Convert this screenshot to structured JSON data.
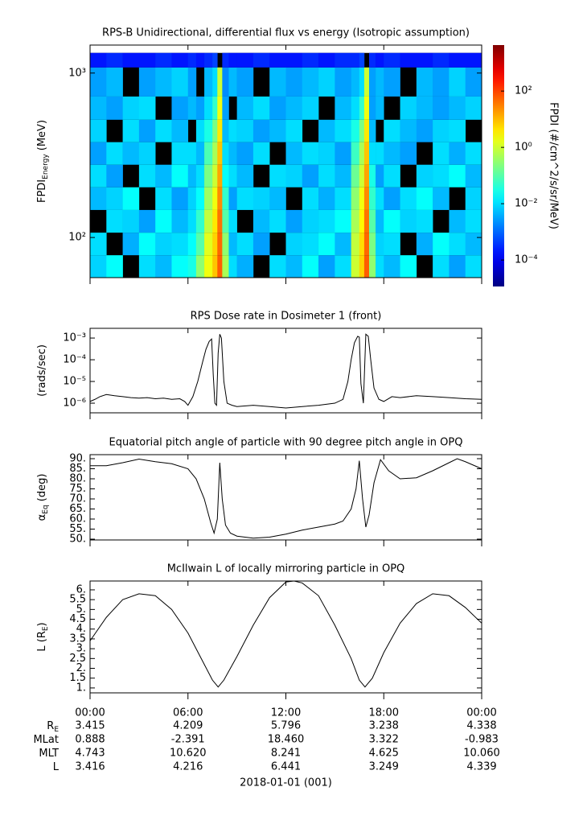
{
  "chart_data": [
    {
      "type": "heatmap",
      "title": "RPS-B  Unidirectional, differential flux vs energy (Isotropic assumption)",
      "ylabel": {
        "main": "FPDI",
        "sub": "Energy",
        "tail": " (MeV)"
      },
      "ylog": true,
      "ylim": [
        57,
        1480
      ],
      "yticks": [
        {
          "value": 100,
          "label": "10²"
        },
        {
          "value": 1000,
          "label": "10³"
        }
      ],
      "xlim": [
        0,
        24
      ],
      "xticks": [
        0,
        6,
        12,
        18,
        24
      ],
      "xbins": [
        0,
        1,
        2,
        3,
        4,
        5,
        6,
        6.5,
        7,
        7.5,
        7.8,
        8.1,
        8.5,
        9,
        10,
        11,
        12,
        13,
        14,
        15,
        16,
        16.5,
        16.8,
        17.1,
        17.5,
        18,
        19,
        20,
        21,
        22,
        23,
        24
      ],
      "ybins": [
        57,
        78,
        107,
        147,
        202,
        277,
        380,
        520,
        720,
        1082,
        1326
      ],
      "z": [
        [
          0.008,
          0.02,
          null,
          0.01,
          0.005,
          0.02,
          0.03,
          0.3,
          2,
          8,
          60,
          0.5,
          0.01,
          0.004,
          null,
          0.01,
          0.005,
          0.02,
          0.003,
          0.01,
          1,
          6,
          60,
          0.3,
          0.01,
          0.005,
          0.02,
          null,
          0.01,
          0.003,
          0.01
        ],
        [
          0.01,
          null,
          0.004,
          0.02,
          0.008,
          0.01,
          0.02,
          0.1,
          1.5,
          6,
          50,
          0.3,
          0.005,
          0.01,
          0.003,
          null,
          0.008,
          0.01,
          0.02,
          0.005,
          0.8,
          5,
          50,
          0.2,
          0.008,
          0.01,
          null,
          0.004,
          0.02,
          0.01,
          0.005
        ],
        [
          null,
          0.01,
          0.008,
          0.003,
          0.02,
          0.005,
          0.01,
          0.05,
          0.8,
          4,
          40,
          0.1,
          0.01,
          null,
          0.005,
          0.01,
          0.003,
          0.008,
          0.01,
          0.02,
          0.5,
          3,
          40,
          0.1,
          0.005,
          0.02,
          0.008,
          0.01,
          null,
          0.005,
          0.01
        ],
        [
          0.005,
          0.008,
          0.02,
          null,
          0.01,
          0.003,
          0.008,
          0.02,
          0.4,
          2,
          25,
          0.05,
          0.003,
          0.01,
          0.008,
          0.005,
          null,
          0.01,
          0.004,
          0.01,
          0.3,
          2,
          25,
          0.05,
          0.01,
          0.003,
          0.01,
          0.02,
          0.005,
          null,
          0.008
        ],
        [
          0.01,
          0.003,
          null,
          0.01,
          0.005,
          0.02,
          0.005,
          0.01,
          0.2,
          1,
          15,
          0.02,
          0.01,
          0.005,
          null,
          0.01,
          0.008,
          0.003,
          0.01,
          0.005,
          0.15,
          1,
          15,
          0.03,
          0.003,
          0.01,
          null,
          0.008,
          0.01,
          0.02,
          0.005
        ],
        [
          0.003,
          0.01,
          0.005,
          0.008,
          null,
          0.01,
          0.01,
          0.005,
          0.08,
          0.5,
          8,
          0.01,
          0.005,
          0.003,
          0.01,
          null,
          0.005,
          0.01,
          0.008,
          0.003,
          0.06,
          0.5,
          8,
          0.01,
          0.01,
          0.005,
          0.003,
          null,
          0.01,
          0.004,
          0.01
        ],
        [
          0.008,
          null,
          0.01,
          0.003,
          0.01,
          0.005,
          null,
          0.01,
          0.03,
          0.2,
          4,
          0.005,
          0.01,
          0.008,
          0.003,
          0.005,
          0.01,
          null,
          0.005,
          0.01,
          0.03,
          0.2,
          4,
          0.005,
          null,
          0.01,
          0.005,
          0.003,
          0.008,
          0.01,
          null
        ],
        [
          0.005,
          0.003,
          0.008,
          0.01,
          null,
          0.003,
          0.005,
          0.003,
          0.01,
          0.05,
          2,
          0.003,
          null,
          0.005,
          0.01,
          0.003,
          0.005,
          0.008,
          null,
          0.005,
          0.01,
          0.05,
          2,
          0.003,
          0.005,
          null,
          0.008,
          0.005,
          0.003,
          0.005,
          0.008
        ],
        [
          0.003,
          0.005,
          null,
          0.003,
          0.005,
          0.008,
          0.003,
          null,
          0.005,
          0.01,
          1,
          0.002,
          0.005,
          0.003,
          null,
          0.005,
          0.003,
          0.005,
          0.008,
          0.003,
          0.005,
          0.01,
          1,
          0.003,
          0.005,
          0.003,
          null,
          0.005,
          0.003,
          0.008,
          0.003
        ],
        [
          0.0002,
          0.0003,
          0.0002,
          0.0002,
          0.0003,
          0.0002,
          0.0003,
          0.0002,
          0.0003,
          0.0005,
          null,
          0.0003,
          0.0002,
          0.0002,
          0.0003,
          0.0002,
          0.0002,
          0.0003,
          0.0002,
          0.0003,
          0.0003,
          0.0005,
          null,
          0.0003,
          0.0002,
          0.0003,
          0.0002,
          0.0002,
          0.0003,
          0.0002,
          0.0002
        ]
      ],
      "colorbar": {
        "label": "FPDI (#/cm^2/s/sr/MeV)",
        "zlim": [
          1.15e-05,
          4300
        ],
        "zticks": [
          {
            "value": 0.0001,
            "label": "10⁻⁴"
          },
          {
            "value": 0.01,
            "label": "10⁻²"
          },
          {
            "value": 1,
            "label": "10⁰"
          },
          {
            "value": 100,
            "label": "10²"
          }
        ]
      }
    },
    {
      "type": "line",
      "title": "RPS  Dose rate in Dosimeter 1 (front)",
      "ylabel": {
        "main": "(rads/sec)"
      },
      "ylog": true,
      "ylim": [
        3.6e-07,
        0.0028
      ],
      "yticks": [
        {
          "value": 1e-06,
          "label": "10⁻⁶"
        },
        {
          "value": 1e-05,
          "label": "10⁻⁵"
        },
        {
          "value": 0.0001,
          "label": "10⁻⁴"
        },
        {
          "value": 0.001,
          "label": "10⁻³"
        }
      ],
      "xlim": [
        0,
        24
      ],
      "xticks": [
        0,
        6,
        12,
        18,
        24
      ],
      "color": "#000000",
      "x": [
        0,
        0.3,
        0.6,
        1,
        1.5,
        2,
        2.5,
        3,
        3.5,
        4,
        4.5,
        5,
        5.5,
        5.8,
        6,
        6.3,
        6.6,
        6.9,
        7.1,
        7.3,
        7.45,
        7.55,
        7.65,
        7.75,
        7.85,
        7.95,
        8.05,
        8.2,
        8.4,
        8.7,
        9,
        10,
        11,
        12,
        13,
        14,
        15,
        15.5,
        15.8,
        16,
        16.2,
        16.4,
        16.5,
        16.6,
        16.75,
        16.9,
        17.05,
        17.2,
        17.4,
        17.7,
        18,
        18.5,
        19,
        20,
        21,
        22,
        23,
        24
      ],
      "values": [
        1.2e-06,
        1.5e-06,
        2e-06,
        2.5e-06,
        2.2e-06,
        2e-06,
        1.8e-06,
        1.7e-06,
        1.8e-06,
        1.6e-06,
        1.7e-06,
        1.5e-06,
        1.6e-06,
        1.2e-06,
        8e-07,
        2e-06,
        1e-05,
        8e-05,
        0.0003,
        0.0007,
        0.0009,
        2e-05,
        1e-06,
        8e-07,
        0.0002,
        0.0015,
        0.001,
        1e-05,
        1e-06,
        8e-07,
        7e-07,
        8e-07,
        7e-07,
        6e-07,
        7e-07,
        8e-07,
        1e-06,
        1.5e-06,
        1e-05,
        0.0001,
        0.0006,
        0.0012,
        0.0011,
        8e-06,
        1e-06,
        0.0015,
        0.0012,
        0.0001,
        5e-06,
        1.5e-06,
        1.2e-06,
        2e-06,
        1.8e-06,
        2.2e-06,
        2e-06,
        1.8e-06,
        1.6e-06,
        1.5e-06
      ]
    },
    {
      "type": "line",
      "title": "Equatorial pitch angle of particle with 90 degree pitch angle in OPQ",
      "ylabel": {
        "main": "α",
        "sub": "Eq",
        "tail": " (deg)"
      },
      "ylim": [
        49.6,
        92
      ],
      "yticks": [
        {
          "value": 50,
          "label": "50."
        },
        {
          "value": 55,
          "label": "55."
        },
        {
          "value": 60,
          "label": "60."
        },
        {
          "value": 65,
          "label": "65."
        },
        {
          "value": 70,
          "label": "70."
        },
        {
          "value": 75,
          "label": "75."
        },
        {
          "value": 80,
          "label": "80."
        },
        {
          "value": 85,
          "label": "85."
        },
        {
          "value": 90,
          "label": "90."
        }
      ],
      "xlim": [
        0,
        24
      ],
      "xticks": [
        0,
        6,
        12,
        18,
        24
      ],
      "color": "#000000",
      "x": [
        0,
        1,
        2,
        3,
        4,
        5,
        6,
        6.5,
        7,
        7.4,
        7.6,
        7.8,
        7.95,
        8.1,
        8.3,
        8.6,
        9,
        10,
        11,
        12,
        13,
        14,
        15,
        15.5,
        16,
        16.3,
        16.5,
        16.7,
        16.9,
        17.1,
        17.4,
        17.8,
        18.3,
        19,
        20,
        21,
        22,
        22.5,
        23,
        24
      ],
      "values": [
        86.5,
        86.5,
        88,
        89.8,
        88.5,
        87.5,
        85,
        80,
        70,
        58,
        53,
        60,
        88,
        70,
        57,
        53,
        51.5,
        50.5,
        51,
        52.5,
        54.5,
        56,
        57.5,
        59,
        65,
        75,
        89,
        70,
        56,
        62,
        78,
        89.5,
        84,
        80,
        80.5,
        84,
        88,
        90,
        88.5,
        85
      ]
    },
    {
      "type": "line",
      "title": "McIlwain L of locally mirroring particle in OPQ",
      "ylabel": {
        "main": "L (R",
        "sub": "E",
        "tail": ")"
      },
      "ylim": [
        0.75,
        6.45
      ],
      "yticks": [
        {
          "value": 1,
          "label": "1."
        },
        1.5,
        {
          "value": 2,
          "label": "2."
        },
        2.5,
        {
          "value": 3,
          "label": "3."
        },
        3.5,
        {
          "value": 4,
          "label": "4."
        },
        4.5,
        {
          "value": 5,
          "label": "5."
        },
        5.5,
        {
          "value": 6,
          "label": "6."
        }
      ],
      "xlim": [
        0,
        24
      ],
      "color": "#000000",
      "xticks": [
        {
          "value": 0,
          "label": "00:00"
        },
        {
          "value": 6,
          "label": "06:00"
        },
        {
          "value": 12,
          "label": "12:00"
        },
        {
          "value": 18,
          "label": "18:00"
        },
        {
          "value": 24,
          "label": "00:00"
        }
      ],
      "x": [
        0,
        1,
        2,
        3,
        4,
        5,
        6,
        7,
        7.5,
        7.85,
        8.2,
        9,
        10,
        11,
        12,
        12.5,
        13,
        14,
        15,
        16,
        16.5,
        16.85,
        17.3,
        18,
        19,
        20,
        21,
        22,
        23,
        24
      ],
      "values": [
        3.4,
        4.6,
        5.5,
        5.8,
        5.7,
        5.0,
        3.8,
        2.2,
        1.4,
        1.05,
        1.4,
        2.6,
        4.2,
        5.6,
        6.4,
        6.45,
        6.35,
        5.7,
        4.2,
        2.5,
        1.4,
        1.05,
        1.5,
        2.8,
        4.3,
        5.3,
        5.8,
        5.7,
        5.1,
        4.3
      ]
    }
  ],
  "ephemeris": {
    "rows": [
      {
        "label": "R",
        "sub": "E",
        "values": [
          "3.415",
          "4.209",
          "5.796",
          "3.238",
          "4.338"
        ]
      },
      {
        "label": "MLat",
        "values": [
          "0.888",
          "-2.391",
          "18.460",
          "3.322",
          "-0.983"
        ]
      },
      {
        "label": "MLT",
        "values": [
          "4.743",
          "10.620",
          "8.241",
          "4.625",
          "10.060"
        ]
      },
      {
        "label": "L",
        "values": [
          "3.416",
          "4.216",
          "6.441",
          "3.249",
          "4.339"
        ]
      }
    ],
    "date": "2018-01-01 (001)"
  }
}
